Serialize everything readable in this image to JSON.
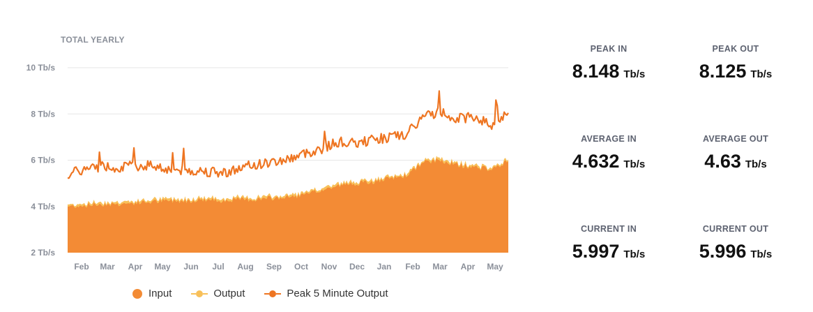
{
  "chart_title": "TOTAL YEARLY",
  "colors": {
    "input": "#F38B35",
    "output": "#F8C05A",
    "peak": "#EE7522",
    "grid": "#e6e6e6",
    "label": "#8a8f99"
  },
  "legend": [
    {
      "label": "Input",
      "color": "#F38B35"
    },
    {
      "label": "Output",
      "color": "#F8C05A"
    },
    {
      "label": "Peak 5 Minute Output",
      "color": "#EE7522"
    }
  ],
  "chart_data": {
    "type": "area",
    "title": "TOTAL YEARLY",
    "y_unit": "Tb/s",
    "ylim": [
      2,
      10
    ],
    "y_ticks": [
      {
        "value": 10,
        "label": "10 Tb/s"
      },
      {
        "value": 8,
        "label": "8 Tb/s"
      },
      {
        "value": 6,
        "label": "6 Tb/s"
      },
      {
        "value": 4,
        "label": "4 Tb/s"
      },
      {
        "value": 2,
        "label": "2 Tb/s"
      }
    ],
    "x_ticks": [
      "Feb",
      "Mar",
      "Apr",
      "May",
      "Jun",
      "Jul",
      "Aug",
      "Sep",
      "Oct",
      "Nov",
      "Dec",
      "Jan",
      "Feb",
      "Mar",
      "Apr",
      "May"
    ],
    "grid": true,
    "legend_position": "bottom",
    "series": [
      {
        "name": "Input",
        "kind": "area",
        "values": [
          4.0,
          4.05,
          4.1,
          4.1,
          4.15,
          4.2,
          4.25,
          4.25,
          4.3,
          4.25,
          4.3,
          4.3,
          4.35,
          4.4,
          4.5,
          4.7,
          4.9,
          5.0,
          5.05,
          5.2,
          5.35,
          5.9,
          6.0,
          5.8,
          5.7,
          5.6,
          5.95
        ]
      },
      {
        "name": "Output",
        "kind": "area",
        "values": [
          4.05,
          4.1,
          4.15,
          4.15,
          4.2,
          4.25,
          4.3,
          4.3,
          4.35,
          4.3,
          4.35,
          4.35,
          4.4,
          4.45,
          4.55,
          4.75,
          4.95,
          5.05,
          5.1,
          5.25,
          5.4,
          5.95,
          6.05,
          5.85,
          5.75,
          5.65,
          6.0
        ]
      },
      {
        "name": "Peak 5 Minute Output",
        "kind": "line",
        "values": [
          5.4,
          5.6,
          5.75,
          5.7,
          5.75,
          5.8,
          5.6,
          5.55,
          5.55,
          5.45,
          5.6,
          5.8,
          5.9,
          6.05,
          6.3,
          6.5,
          6.8,
          6.7,
          6.9,
          7.0,
          7.1,
          7.9,
          8.1,
          7.8,
          7.9,
          7.5,
          8.1
        ]
      }
    ]
  },
  "stats": {
    "peak_in": {
      "label": "PEAK IN",
      "value": "8.148",
      "unit": "Tb/s"
    },
    "peak_out": {
      "label": "PEAK OUT",
      "value": "8.125",
      "unit": "Tb/s"
    },
    "avg_in": {
      "label": "AVERAGE IN",
      "value": "4.632",
      "unit": "Tb/s"
    },
    "avg_out": {
      "label": "AVERAGE OUT",
      "value": "4.63",
      "unit": "Tb/s"
    },
    "cur_in": {
      "label": "CURRENT IN",
      "value": "5.997",
      "unit": "Tb/s"
    },
    "cur_out": {
      "label": "CURRENT OUT",
      "value": "5.996",
      "unit": "Tb/s"
    }
  }
}
